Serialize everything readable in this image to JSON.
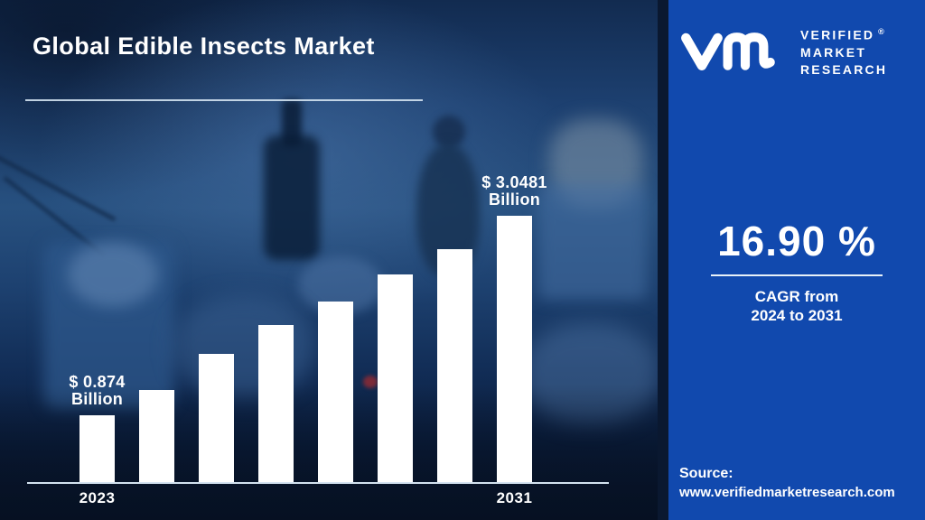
{
  "colors": {
    "panel_blue": "#1149ae",
    "divider_navy": "#0a1830",
    "background_navy": "#0a1b38",
    "bar_white": "#ffffff",
    "axis_line": "#d3e2f0",
    "text_white": "#ffffff"
  },
  "header": {
    "title": "Global Edible Insects Market"
  },
  "branding": {
    "logo_icon": "vmr-monogram-icon",
    "logo_lines": [
      "VERIFIED",
      "MARKET",
      "RESEARCH"
    ],
    "registered_mark": "®"
  },
  "stats": {
    "cagr_value": "16.90 %",
    "cagr_caption_line1": "CAGR from",
    "cagr_caption_line2": "2024 to 2031"
  },
  "source": {
    "label": "Source:",
    "url": "www.verifiedmarketresearch.com"
  },
  "chart_data": {
    "type": "bar",
    "title": "Global Edible Insects Market",
    "unit": "USD Billion",
    "categories": [
      "2023",
      "",
      "",
      "",
      "",
      "",
      "",
      "2031"
    ],
    "values": [
      0.874,
      1.15,
      1.54,
      1.86,
      2.11,
      2.41,
      2.68,
      3.0481
    ],
    "labeled_points": [
      {
        "index": 0,
        "lines": [
          "$ 0.874",
          "Billion"
        ]
      },
      {
        "index": 7,
        "lines": [
          "$ 3.0481",
          "Billion"
        ]
      }
    ],
    "xlabel": "",
    "ylabel": "",
    "ylim": [
      0,
      3.4
    ],
    "gridlines": false,
    "legend": "none",
    "bar_color": "#ffffff"
  }
}
